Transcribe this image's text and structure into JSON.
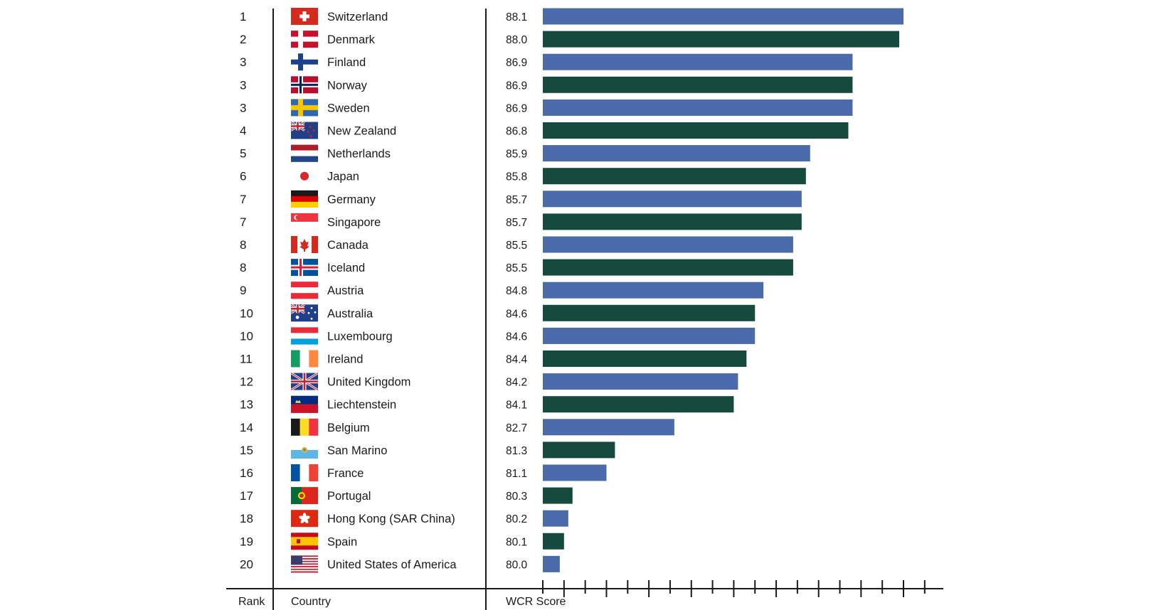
{
  "chart_data": {
    "type": "bar",
    "orientation": "horizontal",
    "series_colors": [
      "#4a6aaa",
      "#154a3c"
    ],
    "rows": [
      {
        "rank": "1",
        "country": "Switzerland",
        "score": 88.1,
        "score_label": "88.1",
        "flag": "switzerland-flag"
      },
      {
        "rank": "2",
        "country": "Denmark",
        "score": 88.0,
        "score_label": "88.0",
        "flag": "denmark-flag"
      },
      {
        "rank": "3",
        "country": "Finland",
        "score": 86.9,
        "score_label": "86.9",
        "flag": "finland-flag"
      },
      {
        "rank": "3",
        "country": "Norway",
        "score": 86.9,
        "score_label": "86.9",
        "flag": "norway-flag"
      },
      {
        "rank": "3",
        "country": "Sweden",
        "score": 86.9,
        "score_label": "86.9",
        "flag": "sweden-flag"
      },
      {
        "rank": "4",
        "country": "New Zealand",
        "score": 86.8,
        "score_label": "86.8",
        "flag": "new-zealand-flag"
      },
      {
        "rank": "5",
        "country": "Netherlands",
        "score": 85.9,
        "score_label": "85.9",
        "flag": "netherlands-flag"
      },
      {
        "rank": "6",
        "country": "Japan",
        "score": 85.8,
        "score_label": "85.8",
        "flag": "japan-flag"
      },
      {
        "rank": "7",
        "country": "Germany",
        "score": 85.7,
        "score_label": "85.7",
        "flag": "germany-flag"
      },
      {
        "rank": "7",
        "country": "Singapore",
        "score": 85.7,
        "score_label": "85.7",
        "flag": "singapore-flag"
      },
      {
        "rank": "8",
        "country": "Canada",
        "score": 85.5,
        "score_label": "85.5",
        "flag": "canada-flag"
      },
      {
        "rank": "8",
        "country": "Iceland",
        "score": 85.5,
        "score_label": "85.5",
        "flag": "iceland-flag"
      },
      {
        "rank": "9",
        "country": "Austria",
        "score": 84.8,
        "score_label": "84.8",
        "flag": "austria-flag"
      },
      {
        "rank": "10",
        "country": "Australia",
        "score": 84.6,
        "score_label": "84.6",
        "flag": "australia-flag"
      },
      {
        "rank": "10",
        "country": "Luxembourg",
        "score": 84.6,
        "score_label": "84.6",
        "flag": "luxembourg-flag"
      },
      {
        "rank": "11",
        "country": "Ireland",
        "score": 84.4,
        "score_label": "84.4",
        "flag": "ireland-flag"
      },
      {
        "rank": "12",
        "country": "United Kingdom",
        "score": 84.2,
        "score_label": "84.2",
        "flag": "united-kingdom-flag"
      },
      {
        "rank": "13",
        "country": "Liechtenstein",
        "score": 84.1,
        "score_label": "84.1",
        "flag": "liechtenstein-flag"
      },
      {
        "rank": "14",
        "country": "Belgium",
        "score": 82.7,
        "score_label": "82.7",
        "flag": "belgium-flag"
      },
      {
        "rank": "15",
        "country": "San Marino",
        "score": 81.3,
        "score_label": "81.3",
        "flag": "san-marino-flag"
      },
      {
        "rank": "16",
        "country": "France",
        "score": 81.1,
        "score_label": "81.1",
        "flag": "france-flag"
      },
      {
        "rank": "17",
        "country": "Portugal",
        "score": 80.3,
        "score_label": "80.3",
        "flag": "portugal-flag"
      },
      {
        "rank": "18",
        "country": "Hong Kong (SAR China)",
        "score": 80.2,
        "score_label": "80.2",
        "flag": "hong-kong-flag"
      },
      {
        "rank": "19",
        "country": "Spain",
        "score": 80.1,
        "score_label": "80.1",
        "flag": "spain-flag"
      },
      {
        "rank": "20",
        "country": "United States of America",
        "score": 80.0,
        "score_label": "80.0",
        "flag": "united-states-flag"
      }
    ],
    "xlim": [
      79.6,
      89.1
    ],
    "tick_step": 0.5,
    "major_tick_every": 2,
    "labels": {
      "rank": "Rank",
      "country": "Country",
      "score": "WCR Score"
    },
    "grid": false,
    "legend": "none"
  }
}
